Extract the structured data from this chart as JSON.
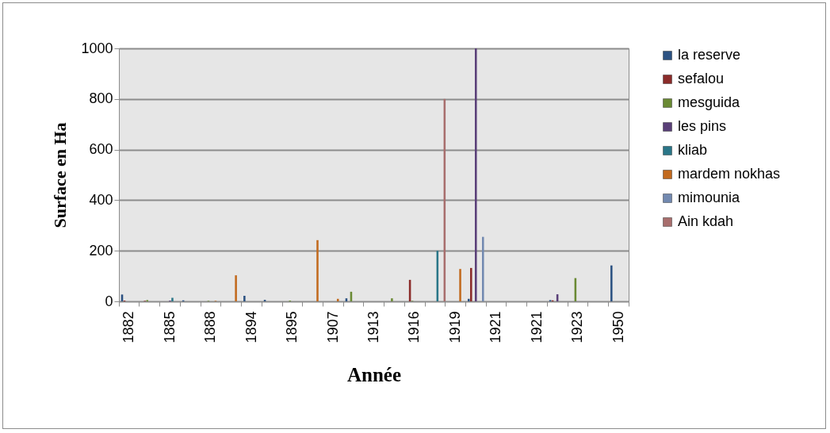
{
  "chart_data": {
    "type": "bar",
    "xlabel": "Année",
    "ylabel": "Surface en Ha",
    "categories": [
      "1882",
      null,
      "1885",
      null,
      "1888",
      null,
      "1894",
      null,
      "1895",
      null,
      "1907",
      null,
      "1913",
      null,
      "1916",
      null,
      "1919",
      null,
      "1921",
      null,
      "1921",
      null,
      "1923",
      null,
      "1950"
    ],
    "series": [
      {
        "name": "la reserve",
        "color": "#2c5282",
        "values": [
          27,
          null,
          null,
          4,
          null,
          null,
          22,
          6,
          null,
          null,
          null,
          12,
          null,
          null,
          null,
          null,
          null,
          10,
          null,
          null,
          null,
          5,
          null,
          null,
          142
        ]
      },
      {
        "name": "sefalou",
        "color": "#8b2c2a",
        "values": [
          3,
          2,
          null,
          null,
          null,
          null,
          null,
          null,
          null,
          null,
          null,
          null,
          null,
          null,
          85,
          null,
          null,
          132,
          null,
          null,
          null,
          4,
          null,
          null,
          null
        ]
      },
      {
        "name": "mesguida",
        "color": "#6a8a34",
        "values": [
          null,
          5,
          null,
          null,
          2,
          null,
          null,
          null,
          3,
          null,
          null,
          38,
          null,
          12,
          2,
          null,
          null,
          null,
          null,
          null,
          null,
          null,
          92,
          null,
          null
        ]
      },
      {
        "name": "les pins",
        "color": "#5a3f78",
        "values": [
          null,
          null,
          3,
          null,
          null,
          null,
          null,
          null,
          null,
          null,
          null,
          null,
          null,
          null,
          null,
          null,
          null,
          1000,
          null,
          null,
          null,
          28,
          null,
          null,
          null
        ]
      },
      {
        "name": "kliab",
        "color": "#2a7688",
        "values": [
          null,
          null,
          14,
          null,
          null,
          null,
          null,
          null,
          null,
          null,
          null,
          null,
          null,
          null,
          null,
          200,
          null,
          null,
          null,
          null,
          null,
          null,
          null,
          null,
          null
        ]
      },
      {
        "name": "mardem nokhas",
        "color": "#c26a1e",
        "values": [
          null,
          null,
          null,
          null,
          2,
          103,
          null,
          null,
          null,
          242,
          10,
          null,
          null,
          null,
          null,
          null,
          128,
          null,
          null,
          null,
          null,
          null,
          null,
          null,
          null
        ]
      },
      {
        "name": "mimounia",
        "color": "#7289b0",
        "values": [
          null,
          null,
          null,
          null,
          null,
          null,
          null,
          null,
          null,
          null,
          null,
          null,
          null,
          null,
          null,
          null,
          null,
          255,
          null,
          null,
          null,
          null,
          null,
          null,
          null
        ]
      },
      {
        "name": "Ain kdah",
        "color": "#a86e6d",
        "values": [
          null,
          null,
          null,
          null,
          null,
          null,
          null,
          null,
          null,
          null,
          null,
          null,
          null,
          null,
          null,
          800,
          null,
          null,
          null,
          null,
          null,
          null,
          null,
          null,
          null
        ]
      }
    ],
    "ylim": [
      0,
      1000
    ],
    "yticks": [
      0,
      200,
      400,
      600,
      800,
      1000
    ],
    "grid": "y",
    "legend": "right"
  }
}
